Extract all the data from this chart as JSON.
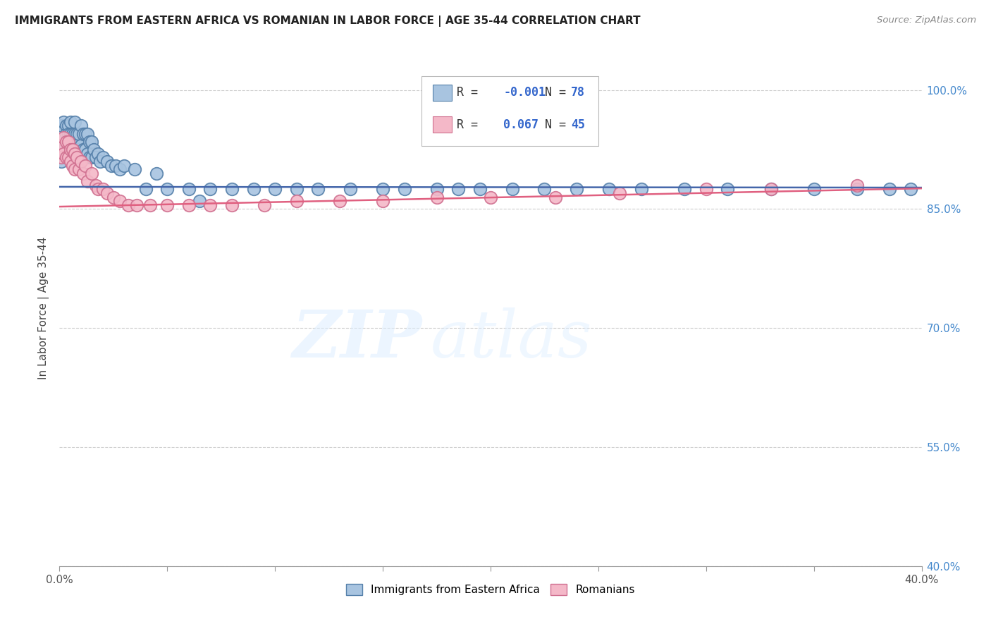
{
  "title": "IMMIGRANTS FROM EASTERN AFRICA VS ROMANIAN IN LABOR FORCE | AGE 35-44 CORRELATION CHART",
  "source": "Source: ZipAtlas.com",
  "ylabel": "In Labor Force | Age 35-44",
  "xlim": [
    0.0,
    0.4
  ],
  "ylim": [
    0.4,
    1.05
  ],
  "ytick_labels_right": [
    "40.0%",
    "55.0%",
    "70.0%",
    "85.0%",
    "100.0%"
  ],
  "yticks_right": [
    0.4,
    0.55,
    0.7,
    0.85,
    1.0
  ],
  "blue_R": "-0.001",
  "blue_N": "78",
  "pink_R": "0.067",
  "pink_N": "45",
  "blue_color": "#A8C4E0",
  "pink_color": "#F4B8C8",
  "blue_edge_color": "#5580AA",
  "pink_edge_color": "#D07090",
  "blue_line_color": "#4466AA",
  "pink_line_color": "#E06080",
  "watermark_zip": "ZIP",
  "watermark_atlas": "atlas",
  "legend_label_blue": "Immigrants from Eastern Africa",
  "legend_label_pink": "Romanians",
  "blue_points_x": [
    0.001,
    0.001,
    0.002,
    0.002,
    0.003,
    0.003,
    0.003,
    0.003,
    0.004,
    0.004,
    0.004,
    0.004,
    0.005,
    0.005,
    0.005,
    0.005,
    0.006,
    0.006,
    0.006,
    0.007,
    0.007,
    0.007,
    0.008,
    0.008,
    0.009,
    0.009,
    0.01,
    0.01,
    0.011,
    0.011,
    0.012,
    0.012,
    0.013,
    0.013,
    0.014,
    0.014,
    0.015,
    0.015,
    0.016,
    0.017,
    0.018,
    0.019,
    0.02,
    0.022,
    0.024,
    0.026,
    0.028,
    0.03,
    0.035,
    0.04,
    0.045,
    0.05,
    0.06,
    0.065,
    0.07,
    0.08,
    0.09,
    0.1,
    0.11,
    0.12,
    0.135,
    0.15,
    0.16,
    0.175,
    0.185,
    0.195,
    0.21,
    0.225,
    0.24,
    0.255,
    0.27,
    0.29,
    0.31,
    0.33,
    0.35,
    0.37,
    0.385,
    0.395
  ],
  "blue_points_y": [
    0.955,
    0.91,
    0.96,
    0.93,
    0.955,
    0.945,
    0.935,
    0.92,
    0.955,
    0.945,
    0.935,
    0.925,
    0.96,
    0.945,
    0.93,
    0.92,
    0.945,
    0.935,
    0.92,
    0.96,
    0.945,
    0.93,
    0.945,
    0.93,
    0.945,
    0.925,
    0.955,
    0.93,
    0.945,
    0.925,
    0.945,
    0.925,
    0.945,
    0.92,
    0.935,
    0.915,
    0.935,
    0.915,
    0.925,
    0.915,
    0.92,
    0.91,
    0.915,
    0.91,
    0.905,
    0.905,
    0.9,
    0.905,
    0.9,
    0.875,
    0.895,
    0.875,
    0.875,
    0.86,
    0.875,
    0.875,
    0.875,
    0.875,
    0.875,
    0.875,
    0.875,
    0.875,
    0.875,
    0.875,
    0.875,
    0.875,
    0.875,
    0.875,
    0.875,
    0.875,
    0.875,
    0.875,
    0.875,
    0.875,
    0.875,
    0.875,
    0.875,
    0.875
  ],
  "pink_points_x": [
    0.001,
    0.001,
    0.002,
    0.002,
    0.003,
    0.003,
    0.004,
    0.004,
    0.005,
    0.005,
    0.006,
    0.006,
    0.007,
    0.007,
    0.008,
    0.009,
    0.01,
    0.011,
    0.012,
    0.013,
    0.015,
    0.017,
    0.018,
    0.02,
    0.022,
    0.025,
    0.028,
    0.032,
    0.036,
    0.042,
    0.05,
    0.06,
    0.07,
    0.08,
    0.095,
    0.11,
    0.13,
    0.15,
    0.175,
    0.2,
    0.23,
    0.26,
    0.3,
    0.33,
    0.37
  ],
  "pink_points_y": [
    0.93,
    0.915,
    0.94,
    0.92,
    0.935,
    0.915,
    0.935,
    0.915,
    0.925,
    0.91,
    0.925,
    0.905,
    0.92,
    0.9,
    0.915,
    0.9,
    0.91,
    0.895,
    0.905,
    0.885,
    0.895,
    0.88,
    0.875,
    0.875,
    0.87,
    0.865,
    0.86,
    0.855,
    0.855,
    0.855,
    0.855,
    0.855,
    0.855,
    0.855,
    0.855,
    0.86,
    0.86,
    0.86,
    0.865,
    0.865,
    0.865,
    0.87,
    0.875,
    0.875,
    0.88
  ]
}
